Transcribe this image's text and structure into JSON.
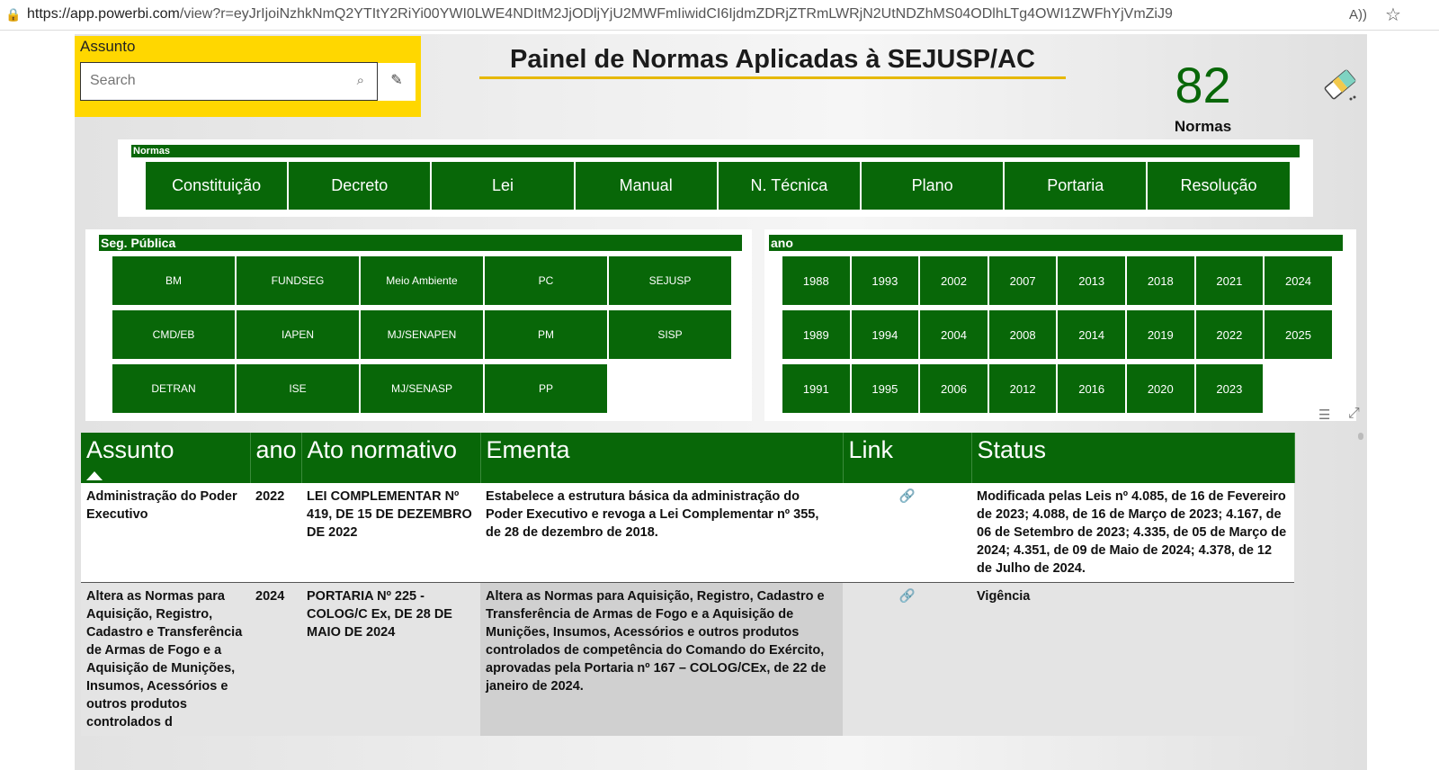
{
  "browser": {
    "url_host": "https://app.powerbi.com",
    "url_path": "/view?r=eyJrIjoiNzhkNmQ2YTItY2RiYi00YWI0LWE4NDItM2JjODljYjU2MWFmIiwidCI6IjdmZDRjZTRmLWRjN2UtNDZhMS04ODlhLTg4OWI1ZWFhYjVmZiJ9",
    "read_aloud": "A))",
    "favorite": "☆"
  },
  "search": {
    "label": "Assunto",
    "placeholder": "Search"
  },
  "title": "Painel de Normas Aplicadas à SEJUSP/AC",
  "kpi": {
    "value": "82",
    "label": "Normas"
  },
  "normas": {
    "header": "Normas",
    "items": [
      "Constituição",
      "Decreto",
      "Lei",
      "Manual",
      "N. Técnica",
      "Plano",
      "Portaria",
      "Resolução"
    ]
  },
  "seg": {
    "header": "Seg. Pública",
    "items": [
      "BM",
      "FUNDSEG",
      "Meio Ambiente",
      "PC",
      "SEJUSP",
      "CMD/EB",
      "IAPEN",
      "MJ/SENAPEN",
      "PM",
      "SISP",
      "DETRAN",
      "ISE",
      "MJ/SENASP",
      "PP"
    ]
  },
  "ano": {
    "header": "ano",
    "items": [
      "1988",
      "1993",
      "2002",
      "2007",
      "2013",
      "2018",
      "2021",
      "2024",
      "1989",
      "1994",
      "2004",
      "2008",
      "2014",
      "2019",
      "2022",
      "2025",
      "1991",
      "1995",
      "2006",
      "2012",
      "2016",
      "2020",
      "2023"
    ]
  },
  "table": {
    "columns": [
      "Assunto",
      "ano",
      "Ato normativo",
      "Ementa",
      "Link",
      "Status"
    ],
    "rows": [
      {
        "assunto": "Administração do Poder Executivo",
        "ano": "2022",
        "ato": "LEI COMPLEMENTAR Nº 419, DE 15 DE DEZEMBRO DE 2022",
        "ementa": "Estabelece a estrutura básica da administração do Poder Executivo e revoga a Lei Complementar nº 355, de 28 de dezembro de 2018.",
        "link": "link-icon",
        "status": "Modificada pelas Leis nº 4.085, de 16 de Fevereiro de 2023; 4.088, de 16 de Março de 2023; 4.167, de 06 de Setembro de 2023; 4.335, de 05 de Março de 2024; 4.351, de 09 de Maio de 2024; 4.378, de 12 de Julho de 2024."
      },
      {
        "assunto": "Altera as Normas para Aquisição, Registro, Cadastro e Transferência de Armas de Fogo e a Aquisição de Munições, Insumos, Acessórios e outros produtos controlados d",
        "ano": "2024",
        "ato": "PORTARIA Nº 225 - COLOG/C Ex, DE 28 DE MAIO DE 2024",
        "ementa": "Altera as Normas para Aquisição, Registro, Cadastro e Transferência de Armas de Fogo e a Aquisição de Munições, Insumos, Acessórios e outros produtos controlados de competência do Comando do Exército, aprovadas pela Portaria nº 167 – COLOG/CEx, de 22 de janeiro de 2024.",
        "link": "link-icon",
        "status": "Vigência"
      }
    ]
  },
  "colors": {
    "green": "#086708",
    "yellow": "#ffd700",
    "title_underline": "#e6b800"
  }
}
